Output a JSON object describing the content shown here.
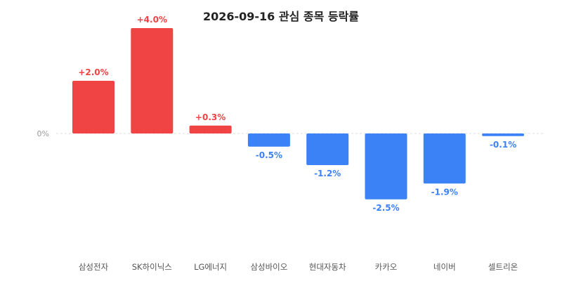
{
  "chart_data": {
    "type": "bar",
    "title": "2026-09-16 관심 종목 등락률",
    "categories": [
      "삼성전자",
      "SK하이닉스",
      "LG에너지",
      "삼성바이오",
      "현대자동차",
      "카카오",
      "네이버",
      "셀트리온"
    ],
    "values": [
      2.0,
      4.0,
      0.3,
      -0.5,
      -1.2,
      -2.5,
      -1.9,
      -0.1
    ],
    "value_labels": [
      "+2.0%",
      "+4.0%",
      "+0.3%",
      "-0.5%",
      "-1.2%",
      "-2.5%",
      "-1.9%",
      "-0.1%"
    ],
    "zero_label": "0%",
    "ylim": [
      -4.0,
      4.0
    ],
    "grid": false,
    "colors": {
      "positive": "#f04444",
      "negative": "#3b82f6",
      "zero_line": "#dddddd"
    }
  }
}
